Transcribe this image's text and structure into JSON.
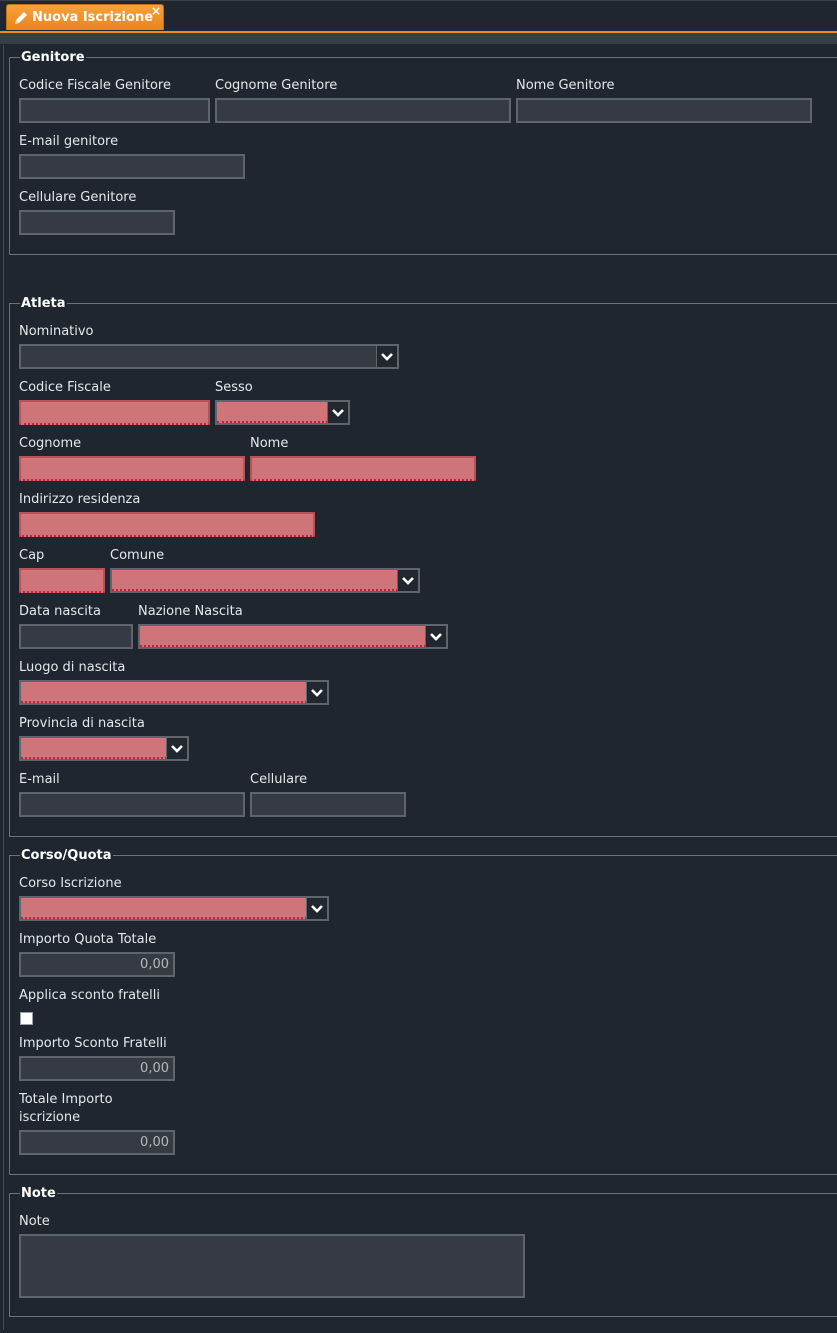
{
  "tab": {
    "title": "Nuova Iscrizione",
    "icon": "pencil-icon",
    "close": "×"
  },
  "sections": {
    "genitore": {
      "legend": "Genitore",
      "codice_fiscale_label": "Codice Fiscale Genitore",
      "cognome_label": "Cognome Genitore",
      "nome_label": "Nome Genitore",
      "email_label": "E-mail genitore",
      "cellulare_label": "Cellulare Genitore"
    },
    "atleta": {
      "legend": "Atleta",
      "nominativo_label": "Nominativo",
      "codice_fiscale_label": "Codice Fiscale",
      "sesso_label": "Sesso",
      "cognome_label": "Cognome",
      "nome_label": "Nome",
      "indirizzo_label": "Indirizzo residenza",
      "cap_label": "Cap",
      "comune_label": "Comune",
      "data_nascita_label": "Data nascita",
      "nazione_nascita_label": "Nazione Nascita",
      "luogo_nascita_label": "Luogo di nascita",
      "provincia_nascita_label": "Provincia di nascita",
      "email_label": "E-mail",
      "cellulare_label": "Cellulare"
    },
    "corso": {
      "legend": "Corso/Quota",
      "corso_label": "Corso Iscrizione",
      "importo_totale_label": "Importo Quota Totale",
      "importo_totale_value": "0,00",
      "sconto_fratelli_label": "Applica sconto fratelli",
      "sconto_fratelli_checked": false,
      "importo_sconto_label": "Importo Sconto Fratelli",
      "importo_sconto_value": "0,00",
      "totale_label": "Totale Importo iscrizione",
      "totale_value": "0,00"
    },
    "note": {
      "legend": "Note",
      "note_label": "Note"
    }
  },
  "colors": {
    "accent": "#ef8a1f",
    "background": "#1f2630",
    "required_field": "#cf7478"
  }
}
